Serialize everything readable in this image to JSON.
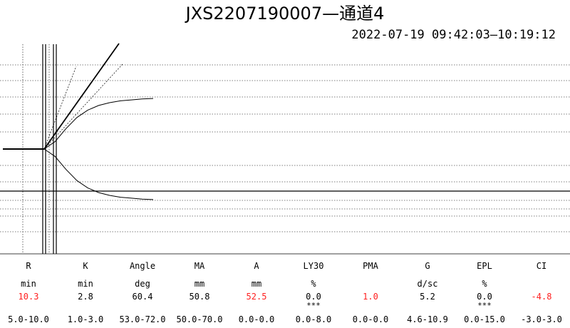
{
  "header": {
    "title": "JXS2207190007—通道4",
    "time_range": "2022-07-19 09:42:03—10:19:12"
  },
  "colors": {
    "trace": "#000000",
    "gridline": "#000000",
    "out_of_range_value": "#ff2020",
    "background": "#ffffff"
  },
  "chart_data": {
    "type": "line",
    "title": "",
    "xlabel": "",
    "ylabel": "",
    "grid": "horizontal dotted",
    "legend": "none",
    "markers": {
      "r_line": 10.3,
      "k_line": 2.8
    },
    "series": [
      {
        "values_upper": [
          0,
          0,
          0,
          8,
          22,
          34,
          42,
          47,
          50,
          52,
          53,
          54,
          54.5
        ],
        "values_lower": [
          0,
          0,
          0,
          -8,
          -22,
          -34,
          -42,
          -47,
          -50,
          -52,
          -53,
          -54,
          -54.5
        ]
      }
    ]
  },
  "parameters": {
    "names": [
      "R",
      "K",
      "Angle",
      "MA",
      "A",
      "LY30",
      "PMA",
      "G",
      "EPL",
      "CI"
    ],
    "units": [
      "min",
      "min",
      "deg",
      "mm",
      "mm",
      "%",
      "",
      "d/sc",
      "%",
      ""
    ],
    "values": [
      "10.3",
      "2.8",
      "60.4",
      "50.8",
      "52.5",
      "0.0",
      "1.0",
      "5.2",
      "0.0",
      "-4.8"
    ],
    "flags": [
      "",
      "",
      "",
      "",
      "",
      "***",
      "",
      "",
      "***",
      ""
    ],
    "out_of_range": [
      true,
      false,
      false,
      false,
      true,
      false,
      true,
      false,
      false,
      true
    ],
    "ranges": [
      "5.0-10.0",
      "1.0-3.0",
      "53.0-72.0",
      "50.0-70.0",
      "0.0-0.0",
      "0.0-8.0",
      "0.0-0.0",
      "4.6-10.9",
      "0.0-15.0",
      "-3.0-3.0"
    ]
  }
}
